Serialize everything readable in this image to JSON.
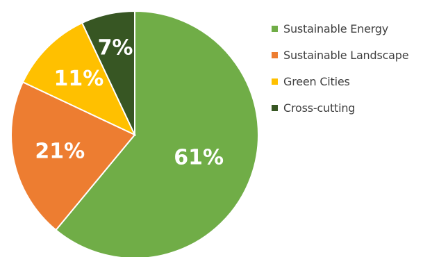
{
  "chart_data": {
    "type": "pie",
    "title": "",
    "labels": [
      "Sustainable Energy",
      "Sustainable Landscape",
      "Green Cities",
      "Cross-cutting"
    ],
    "values": [
      61,
      21,
      11,
      7
    ],
    "value_labels": [
      "61%",
      "21%",
      "11%",
      "7%"
    ],
    "colors": [
      "#70ad47",
      "#ed7d31",
      "#ffc000",
      "#375623"
    ],
    "start_angle_deg": 0,
    "direction": "clockwise",
    "legend_position": "right",
    "data_labels": "inside"
  },
  "legend": {
    "items": [
      {
        "label": "Sustainable Energy",
        "color": "#70ad47"
      },
      {
        "label": "Sustainable Landscape",
        "color": "#ed7d31"
      },
      {
        "label": "Green Cities",
        "color": "#ffc000"
      },
      {
        "label": "Cross-cutting",
        "color": "#375623"
      }
    ]
  }
}
